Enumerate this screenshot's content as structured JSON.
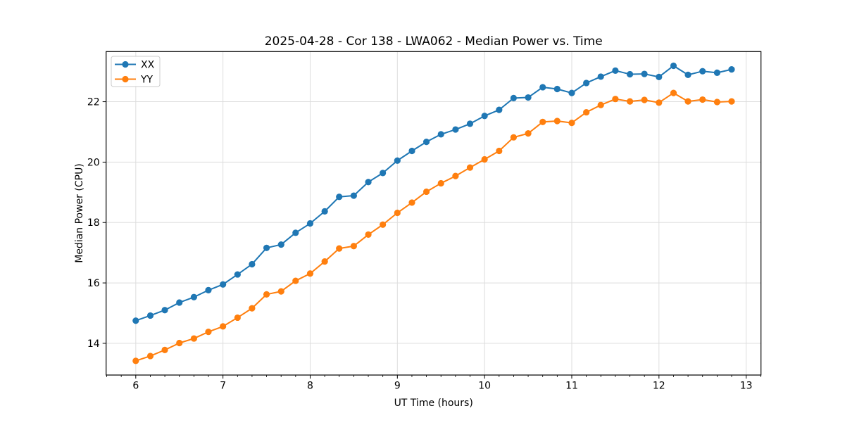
{
  "figure": {
    "background": "#ffffff",
    "frame_color": "#000000",
    "grid_color": "#dddddd",
    "legend_border_color": "#cccccc"
  },
  "chart_data": {
    "type": "line",
    "title": "2025-04-28 - Cor 138 - LWA062 - Median Power vs. Time",
    "xlabel": "UT Time (hours)",
    "ylabel": "Median Power (CPU)",
    "xlim": [
      5.66,
      13.17
    ],
    "ylim": [
      12.95,
      23.66
    ],
    "x_ticks": [
      6,
      7,
      8,
      9,
      10,
      11,
      12,
      13
    ],
    "y_ticks": [
      14,
      16,
      18,
      20,
      22
    ],
    "x_minor_ticks_per_hour": 6,
    "grid": true,
    "legend_position": "upper left",
    "legend_entries": [
      "XX",
      "YY"
    ],
    "x": [
      6.0,
      6.167,
      6.333,
      6.5,
      6.667,
      6.833,
      7.0,
      7.167,
      7.333,
      7.5,
      7.667,
      7.833,
      8.0,
      8.167,
      8.333,
      8.5,
      8.667,
      8.833,
      9.0,
      9.167,
      9.333,
      9.5,
      9.667,
      9.833,
      10.0,
      10.167,
      10.333,
      10.5,
      10.667,
      10.833,
      11.0,
      11.167,
      11.333,
      11.5,
      11.667,
      11.833,
      12.0,
      12.167,
      12.333,
      12.5,
      12.667,
      12.833
    ],
    "series": [
      {
        "name": "XX",
        "color": "#1f77b4",
        "values": [
          14.75,
          14.92,
          15.1,
          15.35,
          15.53,
          15.76,
          15.95,
          16.28,
          16.62,
          17.16,
          17.27,
          17.66,
          17.97,
          18.37,
          18.85,
          18.89,
          19.34,
          19.64,
          20.05,
          20.37,
          20.67,
          20.92,
          21.08,
          21.27,
          21.53,
          21.73,
          22.12,
          22.14,
          22.48,
          22.42,
          22.29,
          22.62,
          22.83,
          23.03,
          22.91,
          22.92,
          22.82,
          23.19,
          22.89,
          23.01,
          22.96,
          23.07
        ]
      },
      {
        "name": "YY",
        "color": "#ff7f0e",
        "values": [
          13.42,
          13.58,
          13.78,
          14.01,
          14.16,
          14.38,
          14.56,
          14.85,
          15.16,
          15.62,
          15.72,
          16.07,
          16.31,
          16.71,
          17.14,
          17.22,
          17.6,
          17.93,
          18.32,
          18.66,
          19.02,
          19.3,
          19.54,
          19.82,
          20.09,
          20.37,
          20.82,
          20.95,
          21.33,
          21.36,
          21.3,
          21.65,
          21.89,
          22.09,
          22.01,
          22.06,
          21.97,
          22.29,
          22.01,
          22.07,
          21.99,
          22.01
        ]
      }
    ]
  }
}
